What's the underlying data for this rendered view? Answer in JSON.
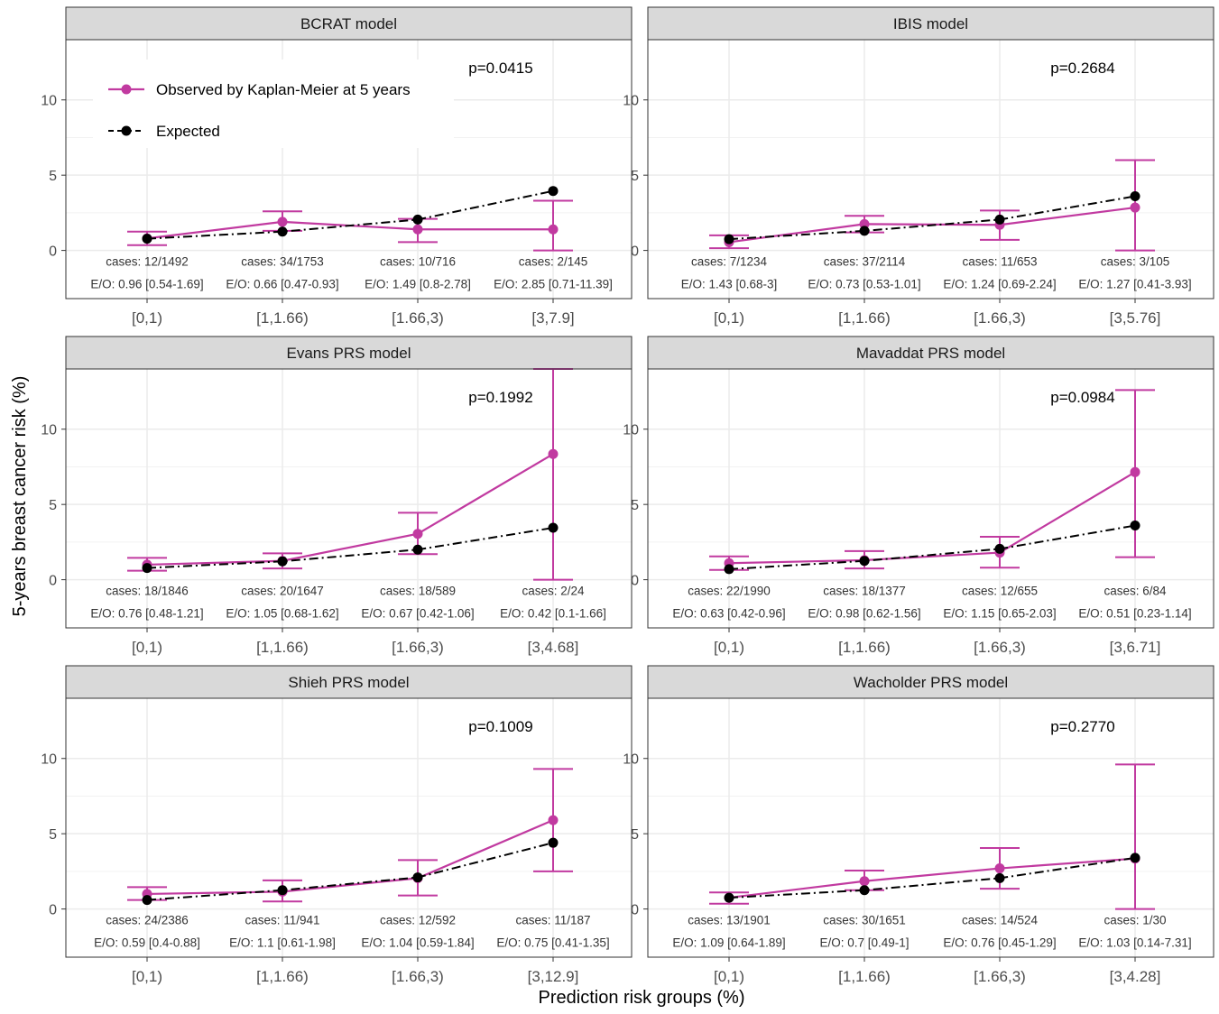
{
  "figure": {
    "ylabel": "5-years breast cancer risk (%)",
    "xlabel": "Prediction risk groups (%)",
    "legend": {
      "observed": "Observed by Kaplan-Meier at 5 years",
      "expected": "Expected"
    },
    "colors": {
      "observed": "#c13aa0",
      "expected": "#000000",
      "strip": "#d9d9d9",
      "grid": "#ebebeb"
    }
  },
  "chart_data": [
    {
      "type": "line",
      "title": "BCRAT model",
      "p_value": "p=0.0415",
      "categories": [
        "[0,1)",
        "[1,1.66)",
        "[1.66,3)",
        "[3,7.9]"
      ],
      "ylim": [
        -3.2,
        14
      ],
      "yticks": [
        0,
        5,
        10
      ],
      "show_legend": true,
      "series": [
        {
          "name": "Observed by Kaplan-Meier at 5 years",
          "values": [
            0.8,
            1.9,
            1.4,
            1.4
          ],
          "lower": [
            0.35,
            1.3,
            0.55,
            0.0
          ],
          "upper": [
            1.25,
            2.6,
            2.1,
            3.3
          ]
        },
        {
          "name": "Expected",
          "values": [
            0.78,
            1.25,
            2.05,
            3.95
          ]
        }
      ],
      "cases": [
        "cases: 12/1492",
        "cases: 34/1753",
        "cases: 10/716",
        "cases: 2/145"
      ],
      "eo": [
        "E/O: 0.96 [0.54-1.69]",
        "E/O: 0.66 [0.47-0.93]",
        "E/O: 1.49 [0.8-2.78]",
        "E/O: 2.85 [0.71-11.39]"
      ]
    },
    {
      "type": "line",
      "title": "IBIS model",
      "p_value": "p=0.2684",
      "categories": [
        "[0,1)",
        "[1,1.66)",
        "[1.66,3)",
        "[3,5.76]"
      ],
      "ylim": [
        -3.2,
        14
      ],
      "yticks": [
        0,
        5,
        10
      ],
      "show_legend": false,
      "series": [
        {
          "name": "Observed by Kaplan-Meier at 5 years",
          "values": [
            0.55,
            1.75,
            1.7,
            2.85
          ],
          "lower": [
            0.15,
            1.2,
            0.7,
            0.0
          ],
          "upper": [
            1.0,
            2.3,
            2.65,
            6.0
          ]
        },
        {
          "name": "Expected",
          "values": [
            0.75,
            1.3,
            2.05,
            3.6
          ]
        }
      ],
      "cases": [
        "cases: 7/1234",
        "cases: 37/2114",
        "cases: 11/653",
        "cases: 3/105"
      ],
      "eo": [
        "E/O: 1.43 [0.68-3]",
        "E/O: 0.73 [0.53-1.01]",
        "E/O: 1.24 [0.69-2.24]",
        "E/O: 1.27 [0.41-3.93]"
      ]
    },
    {
      "type": "line",
      "title": "Evans PRS model",
      "p_value": "p=0.1992",
      "categories": [
        "[0,1)",
        "[1,1.66)",
        "[1.66,3)",
        "[3,4.68]"
      ],
      "ylim": [
        -3.2,
        14
      ],
      "yticks": [
        0,
        5,
        10
      ],
      "show_legend": false,
      "series": [
        {
          "name": "Observed by Kaplan-Meier at 5 years",
          "values": [
            1.0,
            1.25,
            3.05,
            8.35
          ],
          "lower": [
            0.6,
            0.75,
            1.7,
            0.0
          ],
          "upper": [
            1.45,
            1.75,
            4.45,
            14.0
          ]
        },
        {
          "name": "Expected",
          "values": [
            0.78,
            1.22,
            2.0,
            3.45
          ]
        }
      ],
      "cases": [
        "cases: 18/1846",
        "cases: 20/1647",
        "cases: 18/589",
        "cases: 2/24"
      ],
      "eo": [
        "E/O: 0.76 [0.48-1.21]",
        "E/O: 1.05 [0.68-1.62]",
        "E/O: 0.67 [0.42-1.06]",
        "E/O: 0.42 [0.1-1.66]"
      ]
    },
    {
      "type": "line",
      "title": "Mavaddat PRS model",
      "p_value": "p=0.0984",
      "categories": [
        "[0,1)",
        "[1,1.66)",
        "[1.66,3)",
        "[3,6.71]"
      ],
      "ylim": [
        -3.2,
        14
      ],
      "yticks": [
        0,
        5,
        10
      ],
      "show_legend": false,
      "series": [
        {
          "name": "Observed by Kaplan-Meier at 5 years",
          "values": [
            1.1,
            1.3,
            1.8,
            7.15
          ],
          "lower": [
            0.65,
            0.75,
            0.8,
            1.5
          ],
          "upper": [
            1.55,
            1.9,
            2.85,
            12.6
          ]
        },
        {
          "name": "Expected",
          "values": [
            0.7,
            1.25,
            2.05,
            3.6
          ]
        }
      ],
      "cases": [
        "cases: 22/1990",
        "cases: 18/1377",
        "cases: 12/655",
        "cases: 6/84"
      ],
      "eo": [
        "E/O: 0.63 [0.42-0.96]",
        "E/O: 0.98 [0.62-1.56]",
        "E/O: 1.15 [0.65-2.03]",
        "E/O: 0.51 [0.23-1.14]"
      ]
    },
    {
      "type": "line",
      "title": "Shieh PRS model",
      "p_value": "p=0.1009",
      "categories": [
        "[0,1)",
        "[1,1.66)",
        "[1.66,3)",
        "[3,12.9]"
      ],
      "ylim": [
        -3.2,
        14
      ],
      "yticks": [
        0,
        5,
        10
      ],
      "show_legend": false,
      "series": [
        {
          "name": "Observed by Kaplan-Meier at 5 years",
          "values": [
            1.0,
            1.15,
            2.05,
            5.9
          ],
          "lower": [
            0.6,
            0.5,
            0.9,
            2.5
          ],
          "upper": [
            1.45,
            1.9,
            3.25,
            9.3
          ]
        },
        {
          "name": "Expected",
          "values": [
            0.6,
            1.25,
            2.1,
            4.4
          ]
        }
      ],
      "cases": [
        "cases: 24/2386",
        "cases: 11/941",
        "cases: 12/592",
        "cases: 11/187"
      ],
      "eo": [
        "E/O: 0.59 [0.4-0.88]",
        "E/O: 1.1 [0.61-1.98]",
        "E/O: 1.04 [0.59-1.84]",
        "E/O: 0.75 [0.41-1.35]"
      ]
    },
    {
      "type": "line",
      "title": "Wacholder PRS model",
      "p_value": "p=0.2770",
      "categories": [
        "[0,1)",
        "[1,1.66)",
        "[1.66,3)",
        "[3,4.28]"
      ],
      "ylim": [
        -3.2,
        14
      ],
      "yticks": [
        0,
        5,
        10
      ],
      "show_legend": false,
      "series": [
        {
          "name": "Observed by Kaplan-Meier at 5 years",
          "values": [
            0.75,
            1.85,
            2.7,
            3.35
          ],
          "lower": [
            0.35,
            1.25,
            1.35,
            0.0
          ],
          "upper": [
            1.1,
            2.55,
            4.05,
            9.6
          ]
        },
        {
          "name": "Expected",
          "values": [
            0.75,
            1.25,
            2.05,
            3.4
          ]
        }
      ],
      "cases": [
        "cases: 13/1901",
        "cases: 30/1651",
        "cases: 14/524",
        "cases: 1/30"
      ],
      "eo": [
        "E/O: 1.09 [0.64-1.89]",
        "E/O: 0.7 [0.49-1]",
        "E/O: 0.76 [0.45-1.29]",
        "E/O: 1.03 [0.14-7.31]"
      ]
    }
  ]
}
